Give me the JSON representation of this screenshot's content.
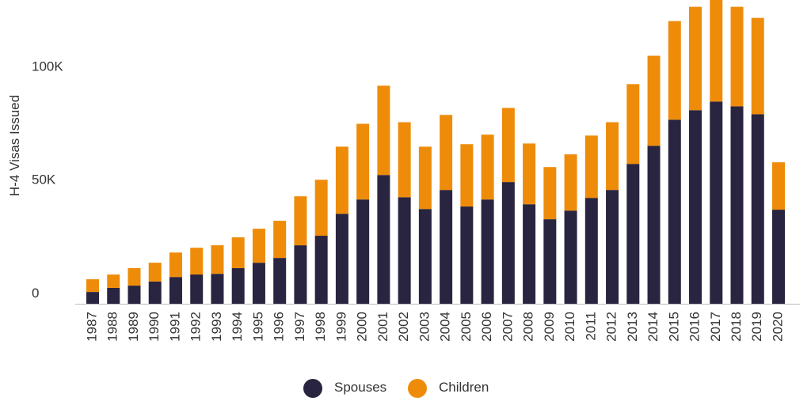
{
  "chart_data": {
    "type": "stacked-bar",
    "y_label": "H-4 Visas Issued",
    "categories": [
      "1987",
      "1988",
      "1989",
      "1990",
      "1991",
      "1992",
      "1993",
      "1994",
      "1995",
      "1996",
      "1997",
      "1998",
      "1999",
      "2000",
      "2001",
      "2002",
      "2003",
      "2004",
      "2005",
      "2006",
      "2007",
      "2008",
      "2009",
      "2010",
      "2011",
      "2012",
      "2013",
      "2014",
      "2015",
      "2016",
      "2017",
      "2018",
      "2019",
      "2020"
    ],
    "series": [
      {
        "name": "Spouses",
        "color": "#29243f",
        "values": [
          5200,
          7000,
          8000,
          9800,
          11800,
          12900,
          13200,
          15700,
          18100,
          20200,
          25800,
          30000,
          39700,
          46000,
          56800,
          47000,
          41800,
          50200,
          42900,
          46000,
          53700,
          43900,
          37300,
          41100,
          46700,
          50200,
          61700,
          69700,
          81200,
          85400,
          89200,
          87100,
          83600,
          41500
        ]
      },
      {
        "name": "Children",
        "color": "#ee8c0a",
        "values": [
          5600,
          5900,
          7700,
          8300,
          10800,
          11800,
          12600,
          13600,
          15000,
          16400,
          21600,
          24700,
          29600,
          33400,
          39400,
          33100,
          27500,
          33100,
          27500,
          28600,
          32700,
          26800,
          23000,
          24800,
          27500,
          29900,
          35200,
          39700,
          43500,
          45600,
          44800,
          43900,
          42500,
          20900
        ]
      }
    ],
    "ylim": [
      0,
      134000
    ],
    "yticks": [
      0,
      {
        "value": 50000,
        "label": "50K"
      },
      {
        "value": 100000,
        "label": "100K"
      }
    ]
  }
}
